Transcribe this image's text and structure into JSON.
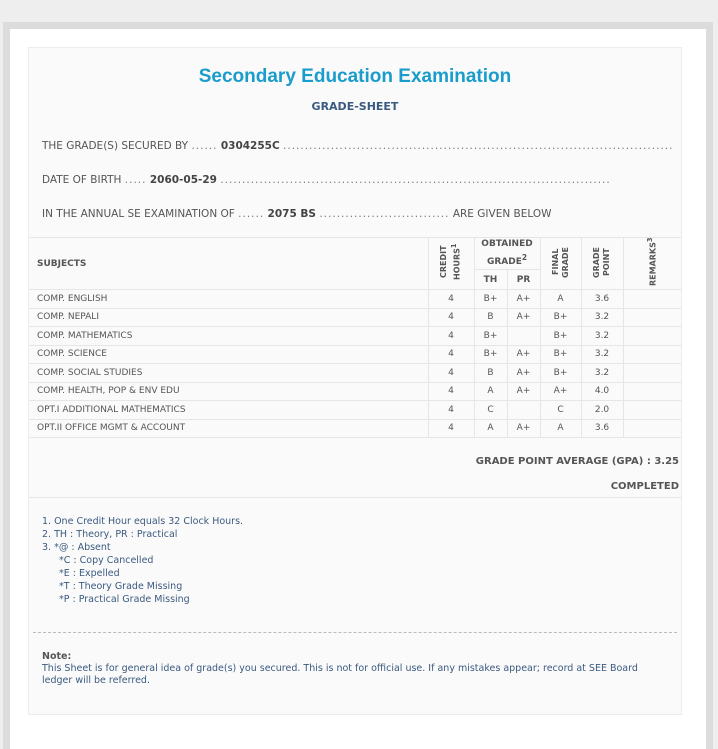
{
  "title": "Secondary Education Examination",
  "subtitle": "GRADE-SHEET",
  "secured_by": {
    "label": "THE GRADE(S) SECURED BY",
    "value": "0304255C"
  },
  "dob": {
    "label": "DATE OF BIRTH",
    "value": "2060-05-29"
  },
  "exam": {
    "label": "IN THE ANNUAL SE EXAMINATION OF",
    "value": "2075 BS",
    "suffix": "ARE GIVEN BELOW"
  },
  "table": {
    "headers": {
      "subjects": "SUBJECTS",
      "credit": "CREDIT HOURS",
      "credit_sup": "1",
      "obtained": "OBTAINED GRADE",
      "obtained_sup": "2",
      "th": "TH",
      "pr": "PR",
      "final": "FINAL GRADE",
      "gp": "GRADE POINT",
      "remarks": "REMARKS",
      "remarks_sup": "3"
    },
    "rows": [
      {
        "subject": "COMP. ENGLISH",
        "credit": "4",
        "th": "B+",
        "pr": "A+",
        "final": "A",
        "gp": "3.6",
        "remarks": ""
      },
      {
        "subject": "COMP. NEPALI",
        "credit": "4",
        "th": "B",
        "pr": "A+",
        "final": "B+",
        "gp": "3.2",
        "remarks": ""
      },
      {
        "subject": "COMP. MATHEMATICS",
        "credit": "4",
        "th": "B+",
        "pr": "",
        "final": "B+",
        "gp": "3.2",
        "remarks": ""
      },
      {
        "subject": "COMP. SCIENCE",
        "credit": "4",
        "th": "B+",
        "pr": "A+",
        "final": "B+",
        "gp": "3.2",
        "remarks": ""
      },
      {
        "subject": "COMP. SOCIAL STUDIES",
        "credit": "4",
        "th": "B",
        "pr": "A+",
        "final": "B+",
        "gp": "3.2",
        "remarks": ""
      },
      {
        "subject": "COMP. HEALTH, POP & ENV EDU",
        "credit": "4",
        "th": "A",
        "pr": "A+",
        "final": "A+",
        "gp": "4.0",
        "remarks": ""
      },
      {
        "subject": "OPT.I ADDITIONAL MATHEMATICS",
        "credit": "4",
        "th": "C",
        "pr": "",
        "final": "C",
        "gp": "2.0",
        "remarks": ""
      },
      {
        "subject": "OPT.II OFFICE MGMT & ACCOUNT",
        "credit": "4",
        "th": "A",
        "pr": "A+",
        "final": "A",
        "gp": "3.6",
        "remarks": ""
      }
    ]
  },
  "gpa": "GRADE POINT AVERAGE (GPA) : 3.25",
  "status": "COMPLETED",
  "footnotes": [
    "1. One Credit Hour equals 32 Clock Hours.",
    "2. TH : Theory, PR : Practical",
    "3. *@ : Absent",
    "*C : Copy Cancelled",
    "*E : Expelled",
    "*T : Theory Grade Missing",
    "*P : Practical Grade Missing"
  ],
  "note": {
    "label": "Note:",
    "text": "This Sheet is for general idea of grade(s) you secured. This is not for official use. If any mistakes appear; record at SEE Board ledger will be referred."
  },
  "colors": {
    "title": "#1a9ccc",
    "subtitle": "#3b5a80"
  }
}
